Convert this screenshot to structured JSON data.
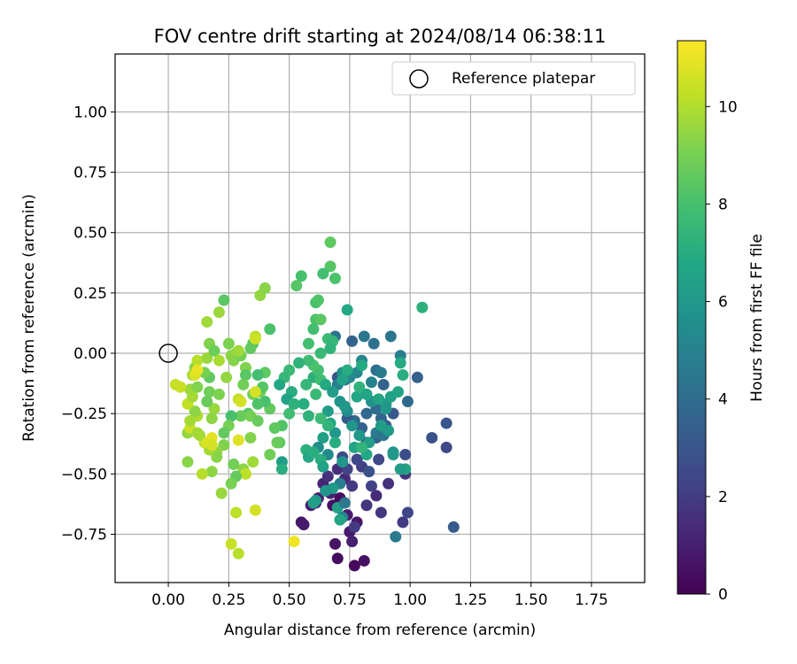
{
  "chart_data": {
    "type": "scatter",
    "title": "FOV centre drift starting at 2024/08/14 06:38:11",
    "xlabel": "Angular distance from reference (arcmin)",
    "ylabel": "Rotation from reference (arcmin)",
    "xlim": [
      -0.22,
      1.97
    ],
    "ylim": [
      -0.95,
      1.24
    ],
    "xticks": [
      "0.00",
      "0.25",
      "0.50",
      "0.75",
      "1.00",
      "1.25",
      "1.50",
      "1.75"
    ],
    "yticks": [
      "−0.75",
      "−0.50",
      "−0.25",
      "0.00",
      "0.25",
      "0.50",
      "0.75",
      "1.00"
    ],
    "grid": true,
    "legend": {
      "position": "top-right",
      "entries": [
        "Reference platepar"
      ]
    },
    "reference_point": [
      0.0,
      0.0
    ],
    "colorbar": {
      "label": "Hours from first FF file",
      "range": [
        0,
        11.35
      ],
      "ticks": [
        "0",
        "2",
        "4",
        "6",
        "8",
        "10"
      ],
      "colormap": "viridis"
    },
    "points": [
      [
        0.7,
        -0.85,
        0.4
      ],
      [
        0.77,
        -0.88,
        0.3
      ],
      [
        0.81,
        -0.86,
        0.5
      ],
      [
        0.69,
        -0.79,
        0.6
      ],
      [
        0.75,
        -0.74,
        0.8
      ],
      [
        0.76,
        -0.78,
        1.0
      ],
      [
        0.78,
        -0.7,
        0.7
      ],
      [
        0.74,
        -0.67,
        0.9
      ],
      [
        0.68,
        -0.63,
        0.5
      ],
      [
        0.71,
        -0.6,
        0.4
      ],
      [
        0.67,
        -0.58,
        1.1
      ],
      [
        0.64,
        -0.54,
        1.2
      ],
      [
        0.7,
        -0.48,
        1.5
      ],
      [
        0.73,
        -0.52,
        1.3
      ],
      [
        0.66,
        -0.51,
        1.6
      ],
      [
        0.55,
        -0.7,
        0.6
      ],
      [
        0.56,
        -0.71,
        0.8
      ],
      [
        0.59,
        -0.63,
        1.0
      ],
      [
        0.61,
        -0.62,
        1.2
      ],
      [
        0.62,
        -0.6,
        0.9
      ],
      [
        0.77,
        -0.72,
        2.0
      ],
      [
        0.82,
        -0.63,
        1.7
      ],
      [
        0.86,
        -0.59,
        1.4
      ],
      [
        0.88,
        -0.66,
        1.8
      ],
      [
        0.84,
        -0.55,
        2.2
      ],
      [
        0.76,
        -0.55,
        1.9
      ],
      [
        0.8,
        -0.47,
        2.1
      ],
      [
        0.78,
        -0.44,
        2.4
      ],
      [
        0.72,
        -0.43,
        2.6
      ],
      [
        0.74,
        -0.48,
        2.3
      ],
      [
        0.87,
        -0.44,
        2.5
      ],
      [
        0.83,
        -0.49,
        2.8
      ],
      [
        0.91,
        -0.54,
        1.6
      ],
      [
        0.97,
        -0.7,
        1.9
      ],
      [
        0.99,
        -0.66,
        2.4
      ],
      [
        0.98,
        -0.5,
        1.7
      ],
      [
        0.98,
        -0.42,
        2.7
      ],
      [
        1.09,
        -0.35,
        2.9
      ],
      [
        1.15,
        -0.39,
        2.5
      ],
      [
        1.15,
        -0.29,
        3.0
      ],
      [
        1.18,
        -0.72,
        3.2
      ],
      [
        0.94,
        -0.76,
        4.6
      ],
      [
        0.82,
        -0.37,
        3.0
      ],
      [
        0.86,
        -0.35,
        3.4
      ],
      [
        0.9,
        -0.3,
        3.3
      ],
      [
        0.93,
        -0.25,
        3.1
      ],
      [
        0.88,
        -0.27,
        3.7
      ],
      [
        0.8,
        -0.31,
        3.5
      ],
      [
        0.77,
        -0.28,
        3.9
      ],
      [
        0.74,
        -0.27,
        3.2
      ],
      [
        0.82,
        -0.25,
        3.8
      ],
      [
        0.86,
        -0.23,
        4.0
      ],
      [
        0.89,
        -0.13,
        3.6
      ],
      [
        0.99,
        -0.2,
        3.9
      ],
      [
        1.03,
        -0.1,
        3.5
      ],
      [
        0.86,
        -0.07,
        4.1
      ],
      [
        0.73,
        -0.11,
        3.4
      ],
      [
        0.7,
        -0.1,
        3.0
      ],
      [
        0.76,
        0.05,
        3.6
      ],
      [
        0.69,
        0.07,
        4.3
      ],
      [
        0.81,
        0.07,
        4.5
      ],
      [
        0.85,
        0.04,
        4.2
      ],
      [
        0.92,
        0.07,
        4.4
      ],
      [
        0.96,
        -0.01,
        4.8
      ],
      [
        0.88,
        -0.08,
        4.7
      ],
      [
        0.84,
        -0.12,
        5.0
      ],
      [
        0.8,
        -0.03,
        5.1
      ],
      [
        0.78,
        -0.08,
        5.3
      ],
      [
        0.75,
        -0.1,
        5.4
      ],
      [
        0.72,
        -0.08,
        5.6
      ],
      [
        0.7,
        -0.13,
        4.9
      ],
      [
        0.68,
        -0.16,
        5.2
      ],
      [
        0.71,
        -0.2,
        5.8
      ],
      [
        0.74,
        -0.24,
        5.5
      ],
      [
        0.76,
        -0.3,
        5.9
      ],
      [
        0.79,
        -0.34,
        6.1
      ],
      [
        0.83,
        -0.37,
        6.3
      ],
      [
        0.86,
        -0.33,
        4.6
      ],
      [
        0.89,
        -0.34,
        4.4
      ],
      [
        0.84,
        -0.2,
        5.7
      ],
      [
        0.9,
        -0.21,
        6.2
      ],
      [
        0.92,
        -0.18,
        6.4
      ],
      [
        0.95,
        -0.16,
        6.6
      ],
      [
        0.97,
        -0.09,
        7.1
      ],
      [
        0.96,
        -0.04,
        6.9
      ],
      [
        0.93,
        -0.41,
        5.8
      ],
      [
        0.98,
        -0.48,
        6.5
      ],
      [
        0.78,
        -0.18,
        6.7
      ],
      [
        0.73,
        -0.22,
        6.0
      ],
      [
        0.66,
        -0.24,
        6.2
      ],
      [
        0.67,
        -0.29,
        6.8
      ],
      [
        0.69,
        -0.33,
        6.0
      ],
      [
        0.64,
        -0.35,
        6.4
      ],
      [
        0.62,
        -0.39,
        5.5
      ],
      [
        0.6,
        -0.41,
        6.1
      ],
      [
        0.57,
        -0.4,
        7.2
      ],
      [
        0.66,
        -0.42,
        5.3
      ],
      [
        0.69,
        -0.37,
        7.0
      ],
      [
        0.72,
        -0.45,
        5.9
      ],
      [
        0.77,
        -0.39,
        6.6
      ],
      [
        0.82,
        -0.42,
        6.8
      ],
      [
        0.8,
        -0.39,
        7.4
      ],
      [
        0.71,
        -0.54,
        4.8
      ],
      [
        0.68,
        -0.56,
        6.2
      ],
      [
        0.65,
        -0.57,
        5.9
      ],
      [
        0.7,
        -0.64,
        6.4
      ],
      [
        0.73,
        -0.62,
        4.5
      ],
      [
        0.72,
        -0.68,
        5.1
      ],
      [
        0.61,
        -0.61,
        6.0
      ],
      [
        0.63,
        -0.44,
        7.1
      ],
      [
        0.58,
        -0.26,
        7.3
      ],
      [
        0.56,
        -0.21,
        7.0
      ],
      [
        0.57,
        -0.13,
        7.5
      ],
      [
        0.6,
        -0.1,
        7.2
      ],
      [
        0.63,
        -0.11,
        7.8
      ],
      [
        0.65,
        -0.13,
        6.9
      ],
      [
        0.61,
        -0.17,
        7.6
      ],
      [
        0.63,
        -0.27,
        7.7
      ],
      [
        0.66,
        -0.3,
        7.4
      ],
      [
        0.62,
        -0.07,
        7.9
      ],
      [
        0.6,
        -0.05,
        8.1
      ],
      [
        0.58,
        -0.03,
        7.8
      ],
      [
        0.54,
        -0.04,
        7.3
      ],
      [
        0.5,
        -0.07,
        7.6
      ],
      [
        0.48,
        -0.1,
        7.5
      ],
      [
        0.46,
        -0.13,
        6.8
      ],
      [
        0.51,
        -0.16,
        7.0
      ],
      [
        0.49,
        -0.19,
        6.5
      ],
      [
        0.52,
        -0.21,
        7.2
      ],
      [
        0.5,
        -0.25,
        7.8
      ],
      [
        0.47,
        -0.3,
        8.2
      ],
      [
        0.46,
        -0.37,
        8.4
      ],
      [
        0.47,
        -0.45,
        6.3
      ],
      [
        0.47,
        -0.48,
        7.1
      ],
      [
        0.44,
        -0.31,
        8.5
      ],
      [
        0.45,
        -0.37,
        8.7
      ],
      [
        0.42,
        -0.42,
        8.9
      ],
      [
        0.42,
        -0.23,
        8.6
      ],
      [
        0.4,
        -0.2,
        8.0
      ],
      [
        0.38,
        -0.16,
        8.8
      ],
      [
        0.39,
        -0.14,
        8.3
      ],
      [
        0.4,
        -0.08,
        8.5
      ],
      [
        0.37,
        -0.09,
        7.9
      ],
      [
        0.42,
        0.1,
        8.1
      ],
      [
        0.35,
        0.04,
        8.3
      ],
      [
        0.34,
        0.02,
        8.6
      ],
      [
        0.28,
        -0.0,
        8.8
      ],
      [
        0.25,
        0.04,
        9.1
      ],
      [
        0.26,
        -0.01,
        9.4
      ],
      [
        0.27,
        -0.03,
        9.3
      ],
      [
        0.3,
        -0.01,
        9.0
      ],
      [
        0.32,
        -0.06,
        9.2
      ],
      [
        0.32,
        -0.09,
        8.4
      ],
      [
        0.35,
        -0.17,
        8.9
      ],
      [
        0.37,
        -0.21,
        8.2
      ],
      [
        0.33,
        -0.25,
        8.3
      ],
      [
        0.3,
        -0.26,
        8.7
      ],
      [
        0.26,
        -0.26,
        8.0
      ],
      [
        0.25,
        -0.3,
        9.0
      ],
      [
        0.23,
        -0.33,
        8.6
      ],
      [
        0.23,
        -0.38,
        9.2
      ],
      [
        0.2,
        -0.41,
        9.5
      ],
      [
        0.2,
        -0.43,
        9.3
      ],
      [
        0.17,
        -0.4,
        9.8
      ],
      [
        0.15,
        -0.37,
        10.2
      ],
      [
        0.13,
        -0.34,
        9.7
      ],
      [
        0.12,
        -0.26,
        10.0
      ],
      [
        0.11,
        -0.24,
        9.4
      ],
      [
        0.08,
        -0.21,
        10.3
      ],
      [
        0.09,
        -0.15,
        9.6
      ],
      [
        0.05,
        -0.14,
        9.9
      ],
      [
        0.03,
        -0.13,
        10.4
      ],
      [
        0.1,
        -0.18,
        9.8
      ],
      [
        0.12,
        -0.14,
        9.2
      ],
      [
        0.17,
        -0.16,
        8.9
      ],
      [
        0.21,
        -0.17,
        9.1
      ],
      [
        0.19,
        -0.23,
        9.6
      ],
      [
        0.18,
        -0.27,
        9.4
      ],
      [
        0.16,
        -0.2,
        8.7
      ],
      [
        0.17,
        -0.1,
        8.5
      ],
      [
        0.15,
        -0.08,
        9.0
      ],
      [
        0.11,
        -0.06,
        9.3
      ],
      [
        0.1,
        -0.09,
        9.8
      ],
      [
        0.12,
        -0.03,
        10.1
      ],
      [
        0.16,
        -0.02,
        9.6
      ],
      [
        0.17,
        0.04,
        9.2
      ],
      [
        0.19,
        0.01,
        8.8
      ],
      [
        0.24,
        -0.1,
        9.5
      ],
      [
        0.21,
        -0.03,
        9.9
      ],
      [
        0.16,
        0.13,
        9.7
      ],
      [
        0.21,
        0.17,
        9.6
      ],
      [
        0.23,
        0.22,
        8.4
      ],
      [
        0.38,
        0.24,
        9.5
      ],
      [
        0.4,
        0.27,
        9.3
      ],
      [
        0.36,
        0.07,
        10.1
      ],
      [
        0.36,
        0.06,
        10.5
      ],
      [
        0.29,
        0.01,
        9.7
      ],
      [
        0.34,
        -0.26,
        9.0
      ],
      [
        0.37,
        -0.28,
        8.7
      ],
      [
        0.36,
        -0.16,
        10.6
      ],
      [
        0.34,
        -0.35,
        9.2
      ],
      [
        0.35,
        -0.45,
        9.7
      ],
      [
        0.31,
        -0.48,
        9.4
      ],
      [
        0.32,
        -0.5,
        10.2
      ],
      [
        0.27,
        -0.46,
        8.9
      ],
      [
        0.28,
        -0.51,
        8.6
      ],
      [
        0.26,
        -0.54,
        9.0
      ],
      [
        0.18,
        -0.49,
        9.4
      ],
      [
        0.14,
        -0.5,
        10.1
      ],
      [
        0.08,
        -0.45,
        9.3
      ],
      [
        0.08,
        -0.33,
        9.5
      ],
      [
        0.09,
        -0.31,
        10.5
      ],
      [
        0.12,
        -0.33,
        9.8
      ],
      [
        0.16,
        -0.37,
        10.7
      ],
      [
        0.18,
        -0.35,
        10.9
      ],
      [
        0.18,
        -0.38,
        10.6
      ],
      [
        0.29,
        -0.36,
        10.8
      ],
      [
        0.29,
        -0.19,
        10.3
      ],
      [
        0.3,
        -0.2,
        10.6
      ],
      [
        0.11,
        -0.09,
        10.7
      ],
      [
        0.12,
        -0.07,
        11.0
      ],
      [
        0.05,
        -0.14,
        10.4
      ],
      [
        0.28,
        -0.66,
        10.2
      ],
      [
        0.22,
        -0.58,
        9.6
      ],
      [
        0.36,
        -0.65,
        10.6
      ],
      [
        0.26,
        -0.79,
        10.4
      ],
      [
        0.29,
        -0.83,
        10.1
      ],
      [
        0.52,
        -0.78,
        11.1
      ],
      [
        0.09,
        -0.28,
        9.8
      ],
      [
        0.31,
        -0.13,
        8.9
      ],
      [
        0.53,
        0.28,
        8.3
      ],
      [
        0.55,
        0.32,
        8.0
      ],
      [
        0.67,
        0.46,
        8.5
      ],
      [
        0.67,
        0.36,
        8.3
      ],
      [
        0.69,
        0.31,
        8.1
      ],
      [
        0.64,
        0.33,
        7.9
      ],
      [
        0.61,
        0.21,
        8.0
      ],
      [
        0.62,
        0.22,
        8.2
      ],
      [
        0.61,
        0.14,
        8.1
      ],
      [
        0.63,
        0.14,
        8.4
      ],
      [
        0.6,
        0.1,
        7.9
      ],
      [
        0.66,
        0.06,
        7.7
      ],
      [
        0.68,
        0.05,
        7.5
      ],
      [
        0.67,
        0.02,
        7.3
      ],
      [
        0.63,
        -0.0,
        7.6
      ],
      [
        0.58,
        0.04,
        7.9
      ],
      [
        0.74,
        0.18,
        6.8
      ],
      [
        1.05,
        0.19,
        7.2
      ],
      [
        0.8,
        -0.05,
        6.9
      ],
      [
        0.74,
        -0.07,
        7.0
      ],
      [
        0.72,
        -0.11,
        6.5
      ],
      [
        0.68,
        -0.16,
        6.2
      ],
      [
        0.79,
        -0.14,
        7.3
      ],
      [
        0.82,
        -0.17,
        6.7
      ],
      [
        0.87,
        -0.19,
        6.6
      ],
      [
        0.9,
        -0.23,
        6.0
      ],
      [
        0.88,
        -0.3,
        6.3
      ],
      [
        0.91,
        -0.32,
        6.1
      ],
      [
        0.93,
        -0.42,
        6.0
      ],
      [
        0.96,
        -0.48,
        6.2
      ],
      [
        0.64,
        -0.47,
        6.5
      ],
      [
        0.58,
        -0.43,
        6.7
      ],
      [
        0.6,
        -0.62,
        6.4
      ],
      [
        0.71,
        -0.69,
        6.6
      ],
      [
        0.6,
        -0.41,
        7.1
      ]
    ]
  }
}
